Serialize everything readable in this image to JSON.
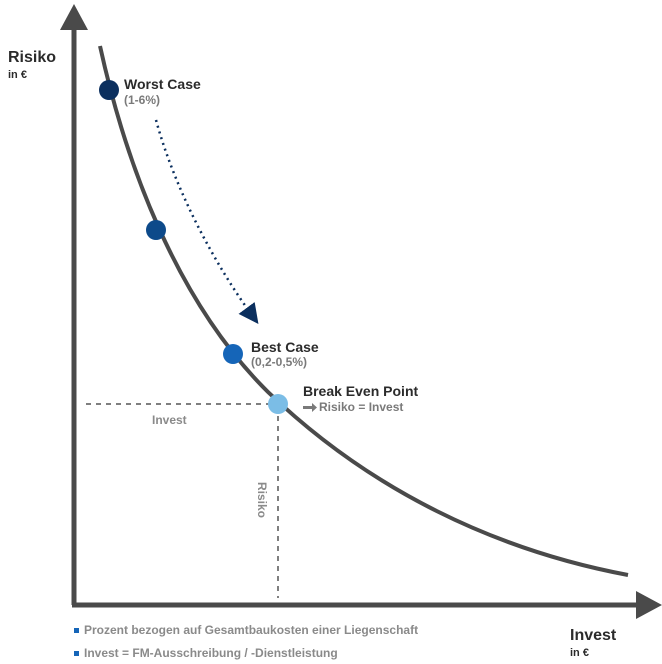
{
  "axes": {
    "y_title": "Risiko",
    "y_unit": "in €",
    "x_title": "Invest",
    "x_unit": "in €"
  },
  "points": {
    "worst": {
      "title": "Worst Case",
      "sub": "(1-6%)",
      "color": "#0b2f5e"
    },
    "middle": {
      "color": "#0d4a8a"
    },
    "best": {
      "title": "Best Case",
      "sub": "(0,2-0,5%)",
      "color": "#1565b8"
    },
    "break_even": {
      "title": "Break Even Point",
      "sub": "Risiko = Invest",
      "color": "#7bbde6"
    }
  },
  "guides": {
    "horizontal_label": "Invest",
    "vertical_label": "Risiko"
  },
  "legend": {
    "items": [
      "Prozent bezogen auf Gesamtbaukosten einer Liegenschaft",
      "Invest = FM-Ausschreibung / -Dienstleistung"
    ],
    "bullet_color": "#1565b8"
  },
  "colors": {
    "axis": "#4a4a4a",
    "curve": "#4a4a4a",
    "trend_arrow": "#0b2f5e"
  }
}
